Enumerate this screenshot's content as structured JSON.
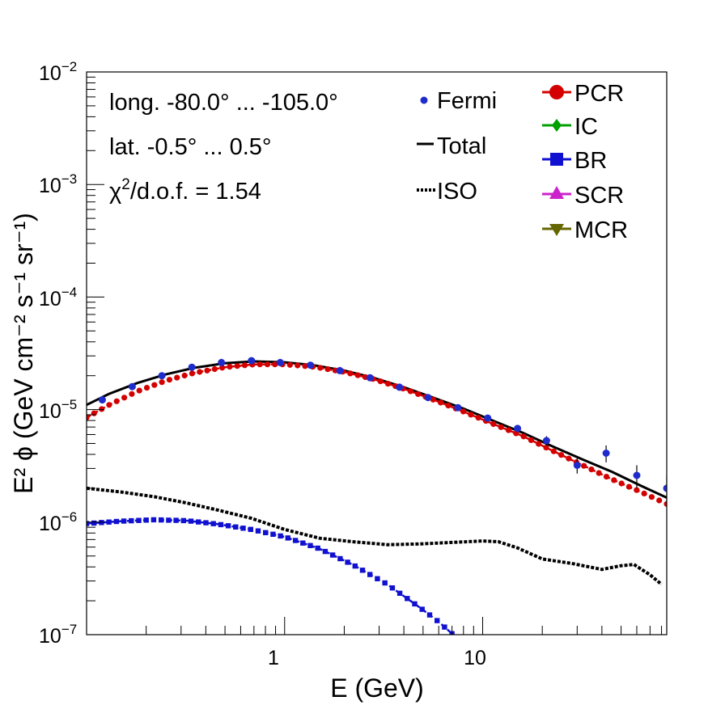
{
  "chart_data": {
    "type": "line",
    "title": "",
    "xlabel": "E (GeV)",
    "ylabel": "E² ϕ (GeV cm⁻² s⁻¹ sr⁻¹)",
    "xscale": "log",
    "yscale": "log",
    "xlim": [
      0.1,
      85
    ],
    "ylim": [
      1e-07,
      0.01
    ],
    "x_tick_labels": [
      "1",
      "10"
    ],
    "y_tick_labels": [
      {
        "base": "10",
        "exp": "−7"
      },
      {
        "base": "10",
        "exp": "−6"
      },
      {
        "base": "10",
        "exp": "−5"
      },
      {
        "base": "10",
        "exp": "−4"
      },
      {
        "base": "10",
        "exp": "−3"
      },
      {
        "base": "10",
        "exp": "−2"
      }
    ],
    "annotations": {
      "longitude": "long. -80.0° ... -105.0°",
      "latitude": "lat. -0.5° ... 0.5°",
      "chi2_prefix": "χ",
      "chi2_sup": "2",
      "chi2_suffix": "/d.o.f. = 1.54"
    },
    "legend": {
      "placement": "top-right",
      "entries": [
        "Fermi",
        "Total",
        "ISO",
        "PCR",
        "IC",
        "BR",
        "SCR",
        "MCR"
      ]
    },
    "colors": {
      "Fermi": "#1f2ccc",
      "Total": "#000000",
      "ISO": "#000000",
      "PCR": "#d40000",
      "IC": "#00a000",
      "BR": "#1010d0",
      "SCR": "#cc22cc",
      "MCR": "#666600"
    },
    "series": [
      {
        "name": "Fermi",
        "style": "points_with_errors",
        "x": [
          0.12,
          0.17,
          0.24,
          0.34,
          0.48,
          0.68,
          0.95,
          1.35,
          1.9,
          2.7,
          3.8,
          5.3,
          7.5,
          10.6,
          15,
          21,
          30,
          42,
          60,
          85
        ],
        "y": [
          1.22e-05,
          1.6e-05,
          2e-05,
          2.38e-05,
          2.62e-05,
          2.72e-05,
          2.62e-05,
          2.48e-05,
          2.22e-05,
          1.92e-05,
          1.58e-05,
          1.28e-05,
          1.04e-05,
          8.4e-06,
          6.8e-06,
          5.3e-06,
          3.2e-06,
          4.1e-06,
          2.6e-06,
          2e-06
        ],
        "err": [
          2e-07,
          2e-07,
          2e-07,
          2e-07,
          2e-07,
          2e-07,
          2e-07,
          2e-07,
          2e-07,
          2e-07,
          2e-07,
          2e-07,
          3e-07,
          3e-07,
          4e-07,
          5e-07,
          5e-07,
          7e-07,
          6e-07,
          6e-07
        ]
      },
      {
        "name": "Total",
        "style": "solid",
        "x": [
          0.1,
          0.13,
          0.18,
          0.25,
          0.35,
          0.5,
          0.7,
          1.0,
          1.4,
          2.0,
          2.8,
          4.0,
          5.6,
          8.0,
          11,
          16,
          22,
          32,
          45,
          63,
          85
        ],
        "y": [
          1.1e-05,
          1.38e-05,
          1.72e-05,
          2.05e-05,
          2.35e-05,
          2.58e-05,
          2.68e-05,
          2.63e-05,
          2.48e-05,
          2.22e-05,
          1.92e-05,
          1.58e-05,
          1.28e-05,
          1.02e-05,
          8.1e-06,
          6.2e-06,
          4.8e-06,
          3.6e-06,
          2.8e-06,
          2.1e-06,
          1.65e-06
        ]
      },
      {
        "name": "PCR",
        "style": "dashed_markers",
        "x": [
          0.1,
          0.13,
          0.18,
          0.25,
          0.35,
          0.5,
          0.7,
          1.0,
          1.4,
          2.0,
          2.8,
          4.0,
          5.6,
          8.0,
          11,
          16,
          22,
          32,
          45,
          63,
          85
        ],
        "y": [
          8.5e-06,
          1.1e-05,
          1.45e-05,
          1.8e-05,
          2.12e-05,
          2.38e-05,
          2.52e-05,
          2.52e-05,
          2.4e-05,
          2.16e-05,
          1.87e-05,
          1.53e-05,
          1.23e-05,
          9.6e-06,
          7.6e-06,
          5.8e-06,
          4.4e-06,
          3.2e-06,
          2.4e-06,
          1.85e-06,
          1.45e-06
        ]
      },
      {
        "name": "ISO",
        "style": "dotted",
        "x": [
          0.1,
          0.15,
          0.22,
          0.32,
          0.46,
          0.68,
          1.0,
          1.5,
          2.2,
          3.3,
          4.8,
          7.0,
          10,
          12,
          15,
          20,
          28,
          40,
          50,
          58,
          70,
          80
        ],
        "y": [
          2e-06,
          1.85e-06,
          1.68e-06,
          1.48e-06,
          1.28e-06,
          1.08e-06,
          8.6e-07,
          7.2e-07,
          6.7e-07,
          6.3e-07,
          6.4e-07,
          6.6e-07,
          6.8e-07,
          6.7e-07,
          5.9e-07,
          4.7e-07,
          4.3e-07,
          3.8e-07,
          4.1e-07,
          4.2e-07,
          3.4e-07,
          2.8e-07
        ]
      },
      {
        "name": "BR",
        "style": "dashed_markers",
        "x": [
          0.1,
          0.15,
          0.22,
          0.32,
          0.46,
          0.68,
          1.0,
          1.5,
          2.2,
          3.3,
          4.8,
          6.0,
          7.0
        ],
        "y": [
          9.7e-07,
          1.02e-06,
          1.05e-06,
          1.03e-06,
          9.6e-07,
          8.6e-07,
          7.4e-07,
          5.8e-07,
          4.2e-07,
          2.8e-07,
          1.75e-07,
          1.3e-07,
          1.02e-07
        ]
      }
    ]
  }
}
